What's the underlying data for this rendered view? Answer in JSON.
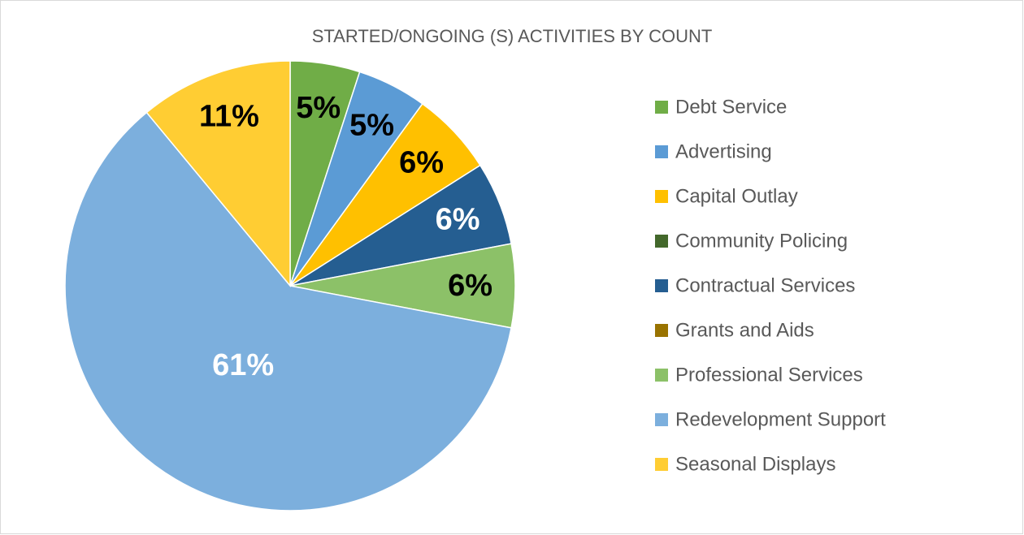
{
  "chart_data": {
    "type": "pie",
    "title": "STARTED/ONGOING (S) ACTIVITIES BY COUNT",
    "categories": [
      "Debt Service",
      "Advertising",
      "Capital Outlay",
      "Community Policing",
      "Contractual Services",
      "Grants and Aids",
      "Professional Services",
      "Redevelopment Support",
      "Seasonal Displays"
    ],
    "values": [
      5,
      5,
      6,
      0,
      6,
      0,
      6,
      61,
      11
    ],
    "value_labels": [
      "5%",
      "5%",
      "6%",
      null,
      "6%",
      null,
      "6%",
      "61%",
      "11%"
    ],
    "colors": [
      "#70ad47",
      "#5b9bd5",
      "#ffc000",
      "#43682b",
      "#255e91",
      "#997300",
      "#8cc168",
      "#7cafdd",
      "#ffcd33"
    ],
    "label_colors": [
      "#000000",
      "#000000",
      "#000000",
      "#000000",
      "#ffffff",
      "#000000",
      "#000000",
      "#ffffff",
      "#000000"
    ],
    "legend": "right"
  }
}
